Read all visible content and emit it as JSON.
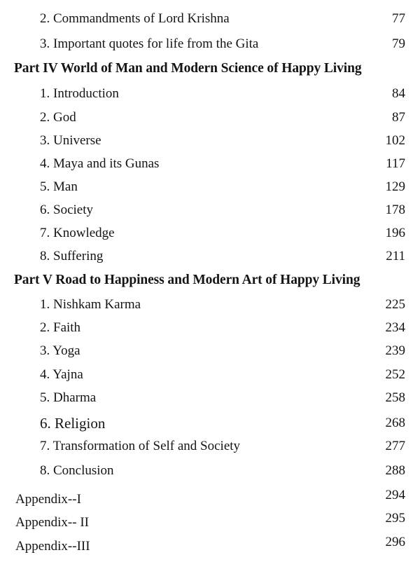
{
  "toc": [
    {
      "type": "entry",
      "title": "2. Commandments of Lord Krishna",
      "page": "77"
    },
    {
      "type": "entry",
      "title": "3. Important quotes for life from the Gita",
      "page": "79"
    },
    {
      "type": "part",
      "title": "Part IV   World of Man and Modern Science of Happy Living",
      "page": ""
    },
    {
      "type": "entry",
      "title": "1. Introduction",
      "page": "84"
    },
    {
      "type": "entry",
      "title": "2. God",
      "page": "87"
    },
    {
      "type": "entry",
      "title": "3. Universe",
      "page": "102"
    },
    {
      "type": "entry",
      "title": "4. Maya and its Gunas",
      "page": "117"
    },
    {
      "type": "entry",
      "title": "5. Man",
      "page": "129"
    },
    {
      "type": "entry",
      "title": "6. Society",
      "page": "178"
    },
    {
      "type": "entry",
      "title": "7. Knowledge",
      "page": "196"
    },
    {
      "type": "entry",
      "title": "8. Suffering",
      "page": "211"
    },
    {
      "type": "part",
      "title": "Part V  Road to Happiness and Modern Art of Happy Living",
      "page": ""
    },
    {
      "type": "entry",
      "title": "1. Nishkam Karma",
      "page": "225"
    },
    {
      "type": "entry",
      "title": "2. Faith",
      "page": "234"
    },
    {
      "type": "entry",
      "title": "3. Yoga",
      "page": "239"
    },
    {
      "type": "entry",
      "title": "4. Yajna",
      "page": "252"
    },
    {
      "type": "entry",
      "title": "5. Dharma",
      "page": "258"
    },
    {
      "type": "entry big",
      "title": "6. Religion",
      "page": "268"
    },
    {
      "type": "entry",
      "title": "7. Transformation of Self and Society",
      "page": "277"
    },
    {
      "type": "entry",
      "title": "8. Conclusion",
      "page": "288"
    },
    {
      "type": "appendix",
      "title": "Appendix--I",
      "page": "294"
    },
    {
      "type": "appendix",
      "title": "Appendix-- II",
      "page": "295"
    },
    {
      "type": "appendix",
      "title": "Appendix--III",
      "page": "296"
    }
  ]
}
